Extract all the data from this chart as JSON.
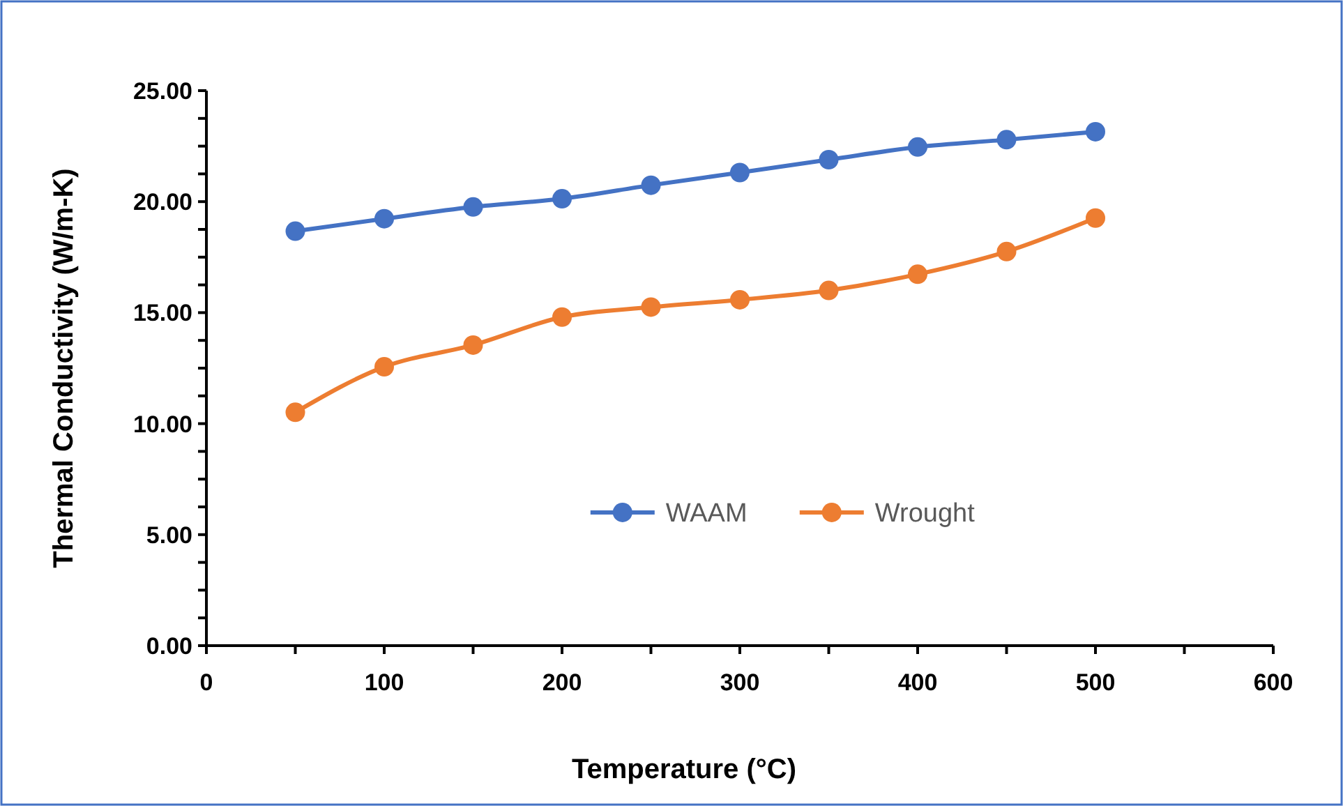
{
  "chart_data": {
    "type": "line",
    "xlabel": "Temperature (°C)",
    "ylabel": "Thermal Conductivity (W/m-K)",
    "x": [
      50,
      100,
      150,
      200,
      250,
      300,
      350,
      400,
      450,
      500
    ],
    "series": [
      {
        "name": "WAAM",
        "color": "#4472c4",
        "values": [
          18.67,
          19.23,
          19.76,
          20.13,
          20.74,
          21.31,
          21.89,
          22.46,
          22.79,
          23.15
        ]
      },
      {
        "name": "Wrought",
        "color": "#ed7d31",
        "values": [
          10.51,
          12.56,
          13.54,
          14.8,
          15.25,
          15.58,
          16.0,
          16.73,
          17.75,
          19.26
        ]
      }
    ],
    "xlim": [
      0,
      600
    ],
    "xticks": [
      0,
      100,
      200,
      300,
      400,
      500,
      600
    ],
    "ylim": [
      0,
      25
    ],
    "yticks": [
      {
        "value": 0,
        "label": "0.00"
      },
      {
        "value": 5,
        "label": "5.00"
      },
      {
        "value": 10,
        "label": "10.00"
      },
      {
        "value": 15,
        "label": "15.00"
      },
      {
        "value": 20,
        "label": "20.00"
      },
      {
        "value": 25,
        "label": "25.00"
      }
    ],
    "grid": false,
    "legend": "center",
    "marker": "circle",
    "line_style": "solid"
  }
}
